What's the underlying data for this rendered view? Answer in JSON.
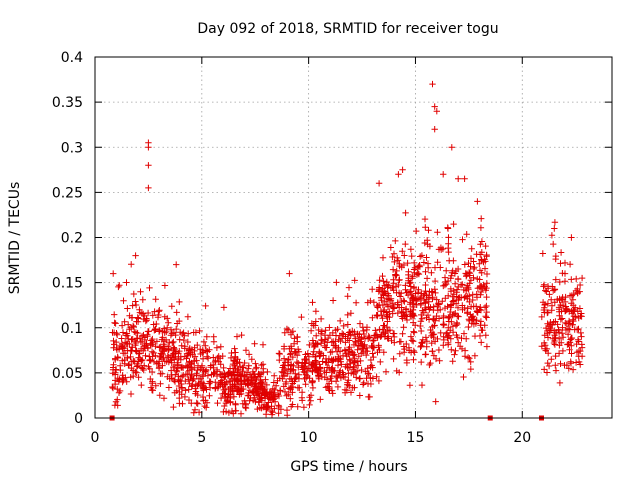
{
  "chart_data": {
    "type": "scatter",
    "title": "Day 092 of 2018, SRMTID for receiver togu",
    "xlabel": "GPS time / hours",
    "ylabel": "SRMTID / TECUs",
    "xlim": [
      0,
      24.2
    ],
    "ylim": [
      0,
      0.4
    ],
    "xticks": [
      0,
      5,
      10,
      15,
      20
    ],
    "xtick_labels": [
      "0",
      "5",
      "10",
      "15",
      "20"
    ],
    "yticks": [
      0,
      0.05,
      0.1,
      0.15,
      0.2,
      0.25,
      0.3,
      0.35,
      0.4
    ],
    "ytick_labels": [
      "0",
      "0.05",
      "0.1",
      "0.15",
      "0.2",
      "0.25",
      "0.3",
      "0.35",
      "0.4"
    ],
    "grid": true,
    "marker": "plus",
    "series_color": "#e00000",
    "density_profile": [
      [
        0.8,
        0.06,
        0.03
      ],
      [
        1.5,
        0.08,
        0.035
      ],
      [
        2.5,
        0.08,
        0.04
      ],
      [
        3.5,
        0.07,
        0.035
      ],
      [
        4.5,
        0.055,
        0.03
      ],
      [
        5.5,
        0.045,
        0.025
      ],
      [
        6.5,
        0.04,
        0.025
      ],
      [
        7.5,
        0.035,
        0.02
      ],
      [
        8.3,
        0.02,
        0.015
      ],
      [
        9.0,
        0.055,
        0.035
      ],
      [
        10.0,
        0.06,
        0.03
      ],
      [
        11.0,
        0.065,
        0.03
      ],
      [
        12.0,
        0.065,
        0.03
      ],
      [
        13.0,
        0.075,
        0.035
      ],
      [
        13.5,
        0.12,
        0.04
      ],
      [
        14.5,
        0.12,
        0.045
      ],
      [
        15.5,
        0.12,
        0.05
      ],
      [
        16.5,
        0.12,
        0.05
      ],
      [
        17.5,
        0.13,
        0.045
      ],
      [
        18.2,
        0.14,
        0.04
      ],
      [
        21.0,
        0.11,
        0.045
      ],
      [
        22.0,
        0.11,
        0.04
      ],
      [
        22.8,
        0.1,
        0.035
      ]
    ],
    "data_gap_hours": [
      [
        18.35,
        20.9
      ]
    ],
    "highlights": [
      [
        2.5,
        0.305
      ],
      [
        2.5,
        0.3
      ],
      [
        2.5,
        0.28
      ],
      [
        2.5,
        0.255
      ],
      [
        15.8,
        0.37
      ],
      [
        15.9,
        0.345
      ],
      [
        16.0,
        0.34
      ],
      [
        15.9,
        0.32
      ],
      [
        16.7,
        0.3
      ],
      [
        13.3,
        0.26
      ],
      [
        14.2,
        0.27
      ],
      [
        14.4,
        0.275
      ],
      [
        16.3,
        0.27
      ],
      [
        17.0,
        0.265
      ],
      [
        17.3,
        0.265
      ],
      [
        17.9,
        0.24
      ],
      [
        1.9,
        0.18
      ],
      [
        3.8,
        0.17
      ],
      [
        9.1,
        0.16
      ],
      [
        0.85,
        0.16
      ],
      [
        21.5,
        0.21
      ],
      [
        22.3,
        0.2
      ],
      [
        22.8,
        0.155
      ]
    ],
    "baseline_markers": [
      0.8,
      18.5,
      20.9
    ]
  }
}
